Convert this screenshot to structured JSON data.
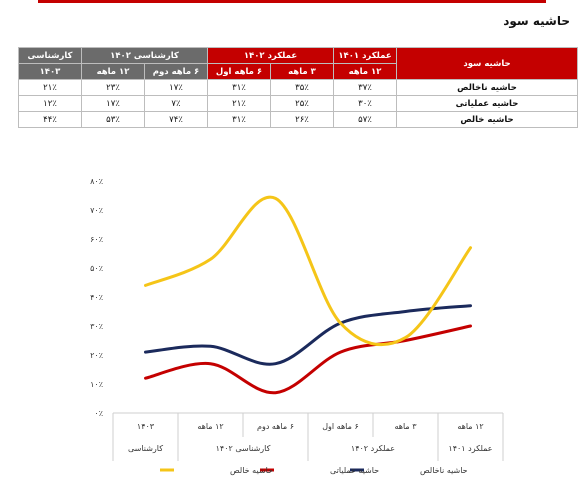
{
  "title": "حاشیه سود",
  "table": {
    "row_header": "حاشیه سود",
    "groups": [
      {
        "label": "عملکرد ۱۴۰۱",
        "color": "red",
        "periods": [
          "۱۲ ماهه"
        ]
      },
      {
        "label": "عملکرد ۱۴۰۲",
        "color": "red",
        "periods": [
          "۳ ماهه",
          "۶ ماهه اول"
        ]
      },
      {
        "label": "کارشناسی ۱۴۰۲",
        "color": "dark",
        "periods": [
          "۶ ماهه دوم",
          "۱۲ ماهه"
        ]
      },
      {
        "label": "کارشناسی",
        "color": "dark",
        "periods": [
          "۱۴۰۳"
        ]
      }
    ],
    "rows": [
      {
        "label": "حاشیه ناخالص",
        "values": [
          "۳۷٪",
          "۳۵٪",
          "۳۱٪",
          "۱۷٪",
          "۲۳٪",
          "۲۱٪"
        ]
      },
      {
        "label": "حاشیه عملیاتی",
        "values": [
          "۳۰٪",
          "۲۵٪",
          "۲۱٪",
          "۷٪",
          "۱۷٪",
          "۱۲٪"
        ]
      },
      {
        "label": "حاشیه خالص",
        "values": [
          "۵۷٪",
          "۲۶٪",
          "۳۱٪",
          "۷۴٪",
          "۵۳٪",
          "۴۴٪"
        ]
      }
    ]
  },
  "chart_data": {
    "type": "line",
    "categories": [
      "۱۲ ماهه",
      "۳ ماهه",
      "۶ ماهه اول",
      "۶ ماهه دوم",
      "۱۲ ماهه",
      "۱۴۰۳"
    ],
    "category_groups": [
      {
        "label": "عملکرد ۱۴۰۱",
        "span": 1
      },
      {
        "label": "عملکرد ۱۴۰۲",
        "span": 2
      },
      {
        "label": "کارشناسی ۱۴۰۲",
        "span": 2
      },
      {
        "label": "کارشناسی",
        "span": 1
      }
    ],
    "y_ticks": [
      "۰٪",
      "۱۰٪",
      "۲۰٪",
      "۳۰٪",
      "۴۰٪",
      "۵۰٪",
      "۶۰٪",
      "۷۰٪",
      "۸۰٪"
    ],
    "ylim": [
      0,
      80
    ],
    "smooth": true,
    "legend_position": "bottom",
    "series": [
      {
        "name": "حاشیه ناخالص",
        "color": "#1b2a5c",
        "values": [
          37,
          35,
          31,
          17,
          23,
          21
        ]
      },
      {
        "name": "حاشیه عملیاتی",
        "color": "#c40000",
        "values": [
          30,
          25,
          21,
          7,
          17,
          12
        ]
      },
      {
        "name": "حاشیه خالص",
        "color": "#f5c518",
        "values": [
          57,
          26,
          31,
          74,
          53,
          44
        ]
      }
    ]
  }
}
